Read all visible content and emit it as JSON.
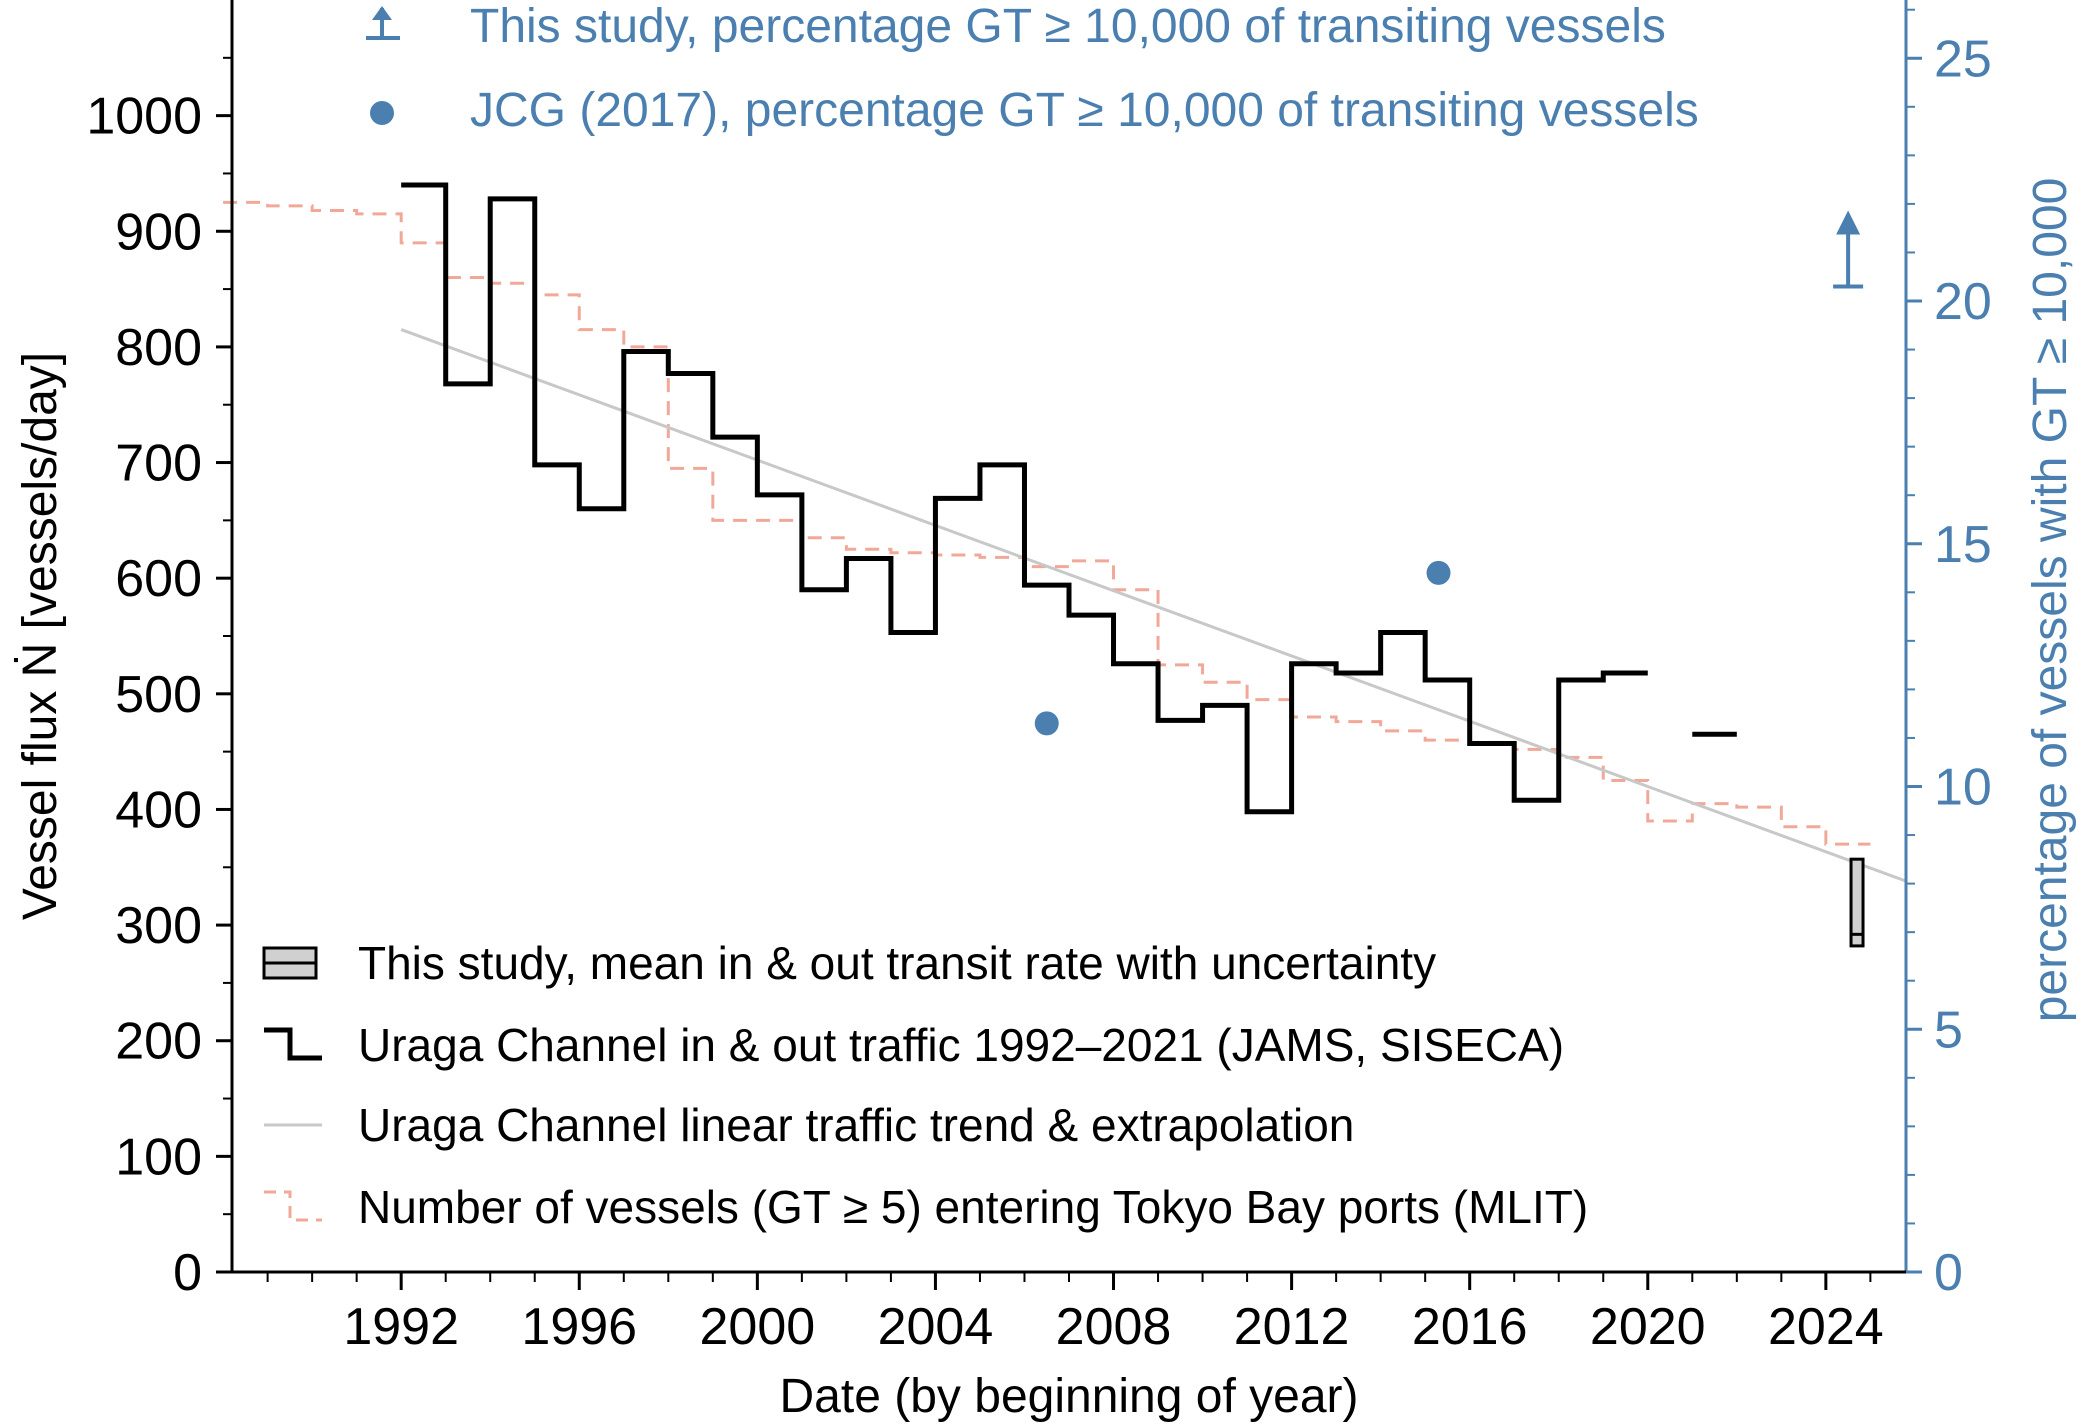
{
  "colors": {
    "black": "#000000",
    "trend": "#c8c8c8",
    "mlit": "#f2a898",
    "blue": "#4a7fb0",
    "box_fill": "#d0d0d0"
  },
  "chart_data": {
    "type": "line",
    "xlabel": "Date (by beginning of year)",
    "ylabel": "Vessel flux Ṅ [vessels/day]",
    "y2label": "percentage of vessels with GT ≥ 10,000",
    "xlim": [
      1988.2,
      2025.8
    ],
    "ylim": [
      0,
      1100
    ],
    "y2lim": [
      0,
      26.2
    ],
    "x_ticks": [
      1992,
      1996,
      2000,
      2004,
      2008,
      2012,
      2016,
      2020,
      2024
    ],
    "x_tick_labels": [
      "1992",
      "1996",
      "2000",
      "2004",
      "2008",
      "2012",
      "2016",
      "2020",
      "2024"
    ],
    "y_ticks": [
      0,
      100,
      200,
      300,
      400,
      500,
      600,
      700,
      800,
      900,
      1000
    ],
    "y_tick_labels": [
      "0",
      "100",
      "200",
      "300",
      "400",
      "500",
      "600",
      "700",
      "800",
      "900",
      "1000"
    ],
    "y2_ticks": [
      0,
      5,
      10,
      15,
      20,
      25
    ],
    "y2_tick_labels": [
      "0",
      "5",
      "10",
      "15",
      "20",
      "25"
    ],
    "series": [
      {
        "name": "Uraga Channel in & out traffic 1992–2021 (JAMS, SISECA)",
        "kind": "step",
        "segments": [
          {
            "years": [
              1992,
              1993,
              1994,
              1995,
              1996,
              1997,
              1998,
              1999,
              2000,
              2001,
              2002,
              2003,
              2004,
              2005,
              2006,
              2007,
              2008,
              2009,
              2010,
              2011,
              2012,
              2013,
              2014,
              2015,
              2016,
              2017,
              2018,
              2019
            ],
            "values": [
              940,
              768,
              928,
              698,
              660,
              796,
              777,
              722,
              672,
              590,
              617,
              553,
              669,
              698,
              594,
              568,
              526,
              477,
              490,
              398,
              526,
              518,
              553,
              512,
              457,
              408,
              512,
              518
            ]
          },
          {
            "years": [
              2021
            ],
            "values": [
              465
            ]
          }
        ]
      },
      {
        "name": "Uraga Channel linear traffic trend & extrapolation",
        "kind": "line",
        "x": [
          1992,
          2025.8
        ],
        "values": [
          815,
          338
        ]
      },
      {
        "name": "Number of vessels (GT ≥ 5) entering Tokyo Bay ports (MLIT)",
        "kind": "step-dashed",
        "years": [
          1988,
          1989,
          1990,
          1991,
          1992,
          1993,
          1994,
          1995,
          1996,
          1997,
          1998,
          1999,
          2000,
          2001,
          2002,
          2003,
          2004,
          2005,
          2006,
          2007,
          2008,
          2009,
          2010,
          2011,
          2012,
          2013,
          2014,
          2015,
          2016,
          2017,
          2018,
          2019,
          2020,
          2021,
          2022,
          2023,
          2024
        ],
        "values": [
          925,
          922,
          918,
          915,
          890,
          860,
          855,
          845,
          815,
          800,
          695,
          650,
          650,
          635,
          625,
          622,
          620,
          618,
          610,
          615,
          590,
          525,
          510,
          495,
          480,
          476,
          468,
          460,
          458,
          452,
          445,
          425,
          390,
          405,
          402,
          385,
          370
        ]
      },
      {
        "name": "This study, mean in & out transit rate with uncertainty",
        "kind": "box",
        "x": 2024.7,
        "low": 282,
        "high": 357,
        "mean": 292
      },
      {
        "name": "JCG (2017), percentage GT ≥ 10,000 of transiting vessels",
        "kind": "scatter",
        "axis": "right",
        "x": [
          2006.5,
          2015.3
        ],
        "values": [
          11.3,
          14.4
        ]
      },
      {
        "name": "This study, percentage GT ≥ 10,000 of transiting vessels",
        "kind": "lower-limit",
        "axis": "right",
        "x": 2024.5,
        "value": 20.3
      }
    ],
    "legend_top": [
      "This study, percentage GT ≥ 10,000 of transiting vessels",
      "JCG (2017), percentage GT ≥ 10,000 of transiting vessels"
    ],
    "legend_bottom": [
      "This study, mean in & out transit rate with uncertainty",
      "Uraga Channel in & out traffic 1992–2021 (JAMS, SISECA)",
      "Uraga Channel linear traffic trend & extrapolation",
      "Number of vessels (GT ≥ 5) entering Tokyo Bay ports (MLIT)"
    ]
  }
}
